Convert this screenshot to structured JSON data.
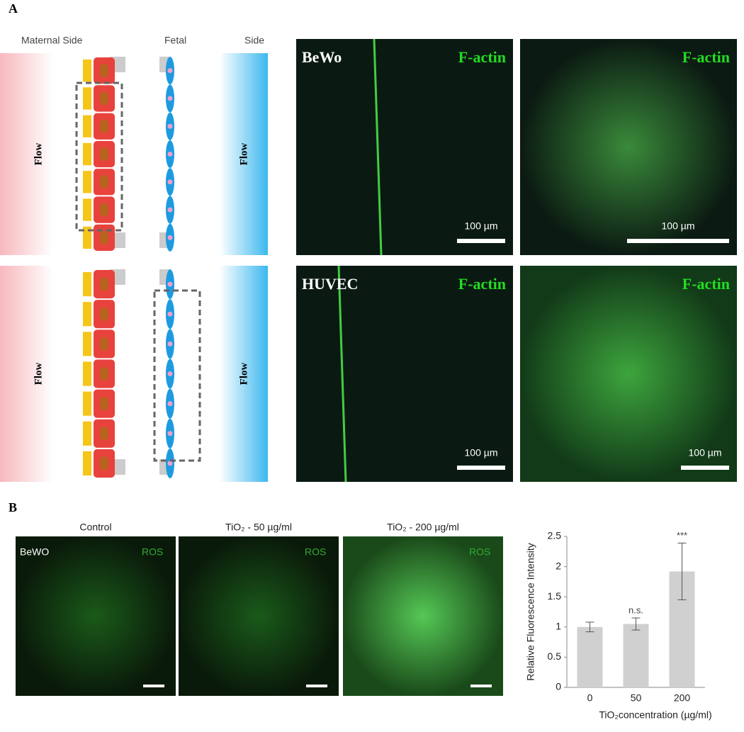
{
  "panel_labels": [
    "A",
    "B"
  ],
  "diagram": {
    "maternal": "Maternal Side",
    "fetal": "Fetal",
    "side": "Side",
    "flow": [
      "Flow",
      "Flow",
      "Flow",
      "Flow"
    ]
  },
  "images_a": [
    {
      "cell": "BeWo",
      "stain": "F-actin",
      "scale": "100 µm"
    },
    {
      "stain": "F-actin",
      "scale": "100 µm"
    },
    {
      "cell": "HUVEC",
      "stain": "F-actin",
      "scale": "100 µm"
    },
    {
      "stain": "F-actin",
      "scale": "100 µm"
    }
  ],
  "images_b": [
    {
      "title": "Control",
      "cell": "BeWO",
      "stain": "ROS"
    },
    {
      "title": "TiO₂ - 50 µg/ml",
      "stain": "ROS"
    },
    {
      "title": "TiO₂ - 200 µg/ml",
      "stain": "ROS"
    }
  ],
  "chart_data": {
    "type": "bar",
    "categories": [
      "0",
      "50",
      "200"
    ],
    "values": [
      1.0,
      1.05,
      1.92
    ],
    "errors": [
      0.08,
      0.1,
      0.47
    ],
    "annotations": [
      null,
      "n.s.",
      "***"
    ],
    "color": "#d0d0d0",
    "ylim": [
      0,
      2.5
    ],
    "yticks": [
      0,
      0.5,
      1,
      1.5,
      2,
      2.5
    ],
    "y_label": "Relative Fluorescence Intensity",
    "x_label": "TiO₂concentration (µg/ml)"
  }
}
